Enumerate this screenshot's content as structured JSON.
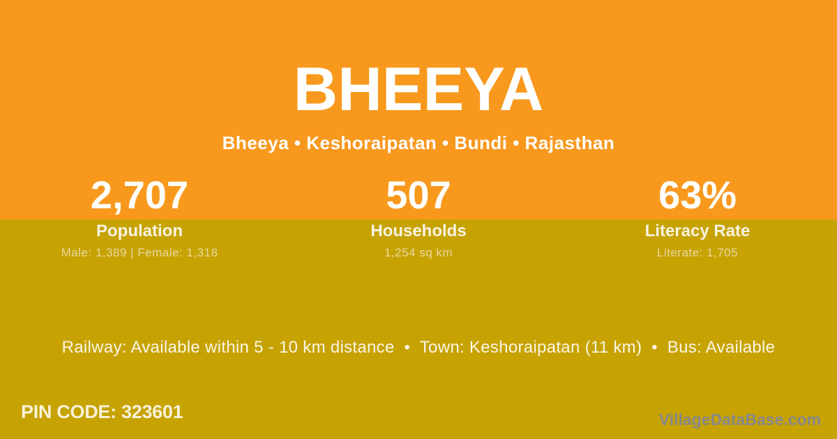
{
  "village": {
    "title": "BHEEYA",
    "subtitle": "Bheeya • Keshoraipatan • Bundi • Rajasthan"
  },
  "stats": [
    {
      "value": "2,707",
      "label": "Population",
      "detail": "Male: 1,389 | Female: 1,318"
    },
    {
      "value": "507",
      "label": "Households",
      "detail": "1,254 sq km"
    },
    {
      "value": "63%",
      "label": "Literacy Rate",
      "detail": "Literate: 1,705"
    }
  ],
  "transport": {
    "line": "Railway: Available within 5 - 10 km distance  •  Town: Keshoraipatan (11 km)  •  Bus: Available"
  },
  "footer": {
    "pin_code": "PIN CODE: 323601",
    "watermark": "VillageDataBase.com"
  },
  "colors": {
    "top_background": "#F8991E",
    "bottom_background": "#C6A303",
    "primary_text": "#FFFFFF",
    "muted_text": "#E9D89F",
    "watermark_text": "#87878B"
  }
}
